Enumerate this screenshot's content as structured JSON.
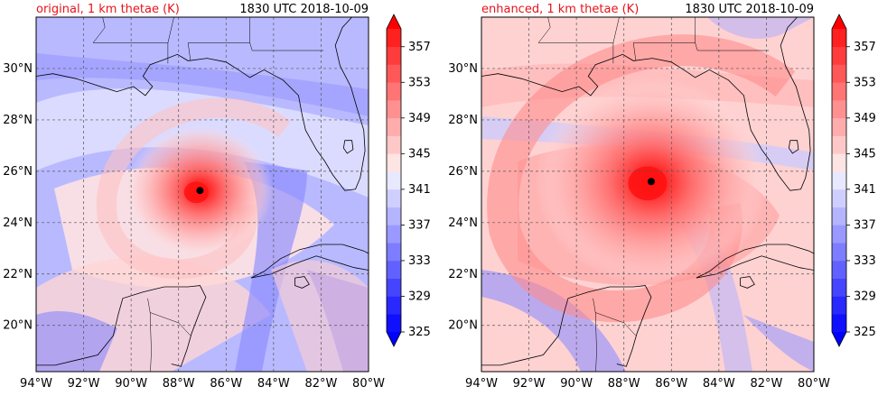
{
  "panels": [
    {
      "title_left": "original, 1 km thetae (K)",
      "title_right": "1830 UTC 2018-10-09",
      "storm_center": {
        "lon": -87.1,
        "lat": 25.25
      },
      "core_scale": 0.85
    },
    {
      "title_left": "enhanced, 1 km thetae (K)",
      "title_right": "1830 UTC 2018-10-09",
      "storm_center": {
        "lon": -86.85,
        "lat": 25.6
      },
      "core_scale": 1.35
    }
  ],
  "map_extent": {
    "lon": [
      -94,
      -80
    ],
    "lat": [
      18.2,
      32
    ]
  },
  "lon_ticks": [
    "94°W",
    "92°W",
    "90°W",
    "88°W",
    "86°W",
    "84°W",
    "82°W",
    "80°W"
  ],
  "lat_ticks": [
    "20°N",
    "22°N",
    "24°N",
    "26°N",
    "28°N",
    "30°N"
  ],
  "lon_values": [
    -94,
    -92,
    -90,
    -88,
    -86,
    -84,
    -82,
    -80
  ],
  "lat_values": [
    20,
    22,
    24,
    26,
    28,
    30
  ],
  "colorbar": {
    "min": 325,
    "max": 359,
    "step": 2,
    "tick_labels": [
      "325",
      "329",
      "333",
      "337",
      "341",
      "345",
      "349",
      "353",
      "357"
    ],
    "tick_values": [
      325,
      329,
      333,
      337,
      341,
      345,
      349,
      353,
      357
    ],
    "colors": [
      "#1010ff",
      "#2828ff",
      "#4545ff",
      "#6161ff",
      "#7d7dff",
      "#9999ff",
      "#b4b4ff",
      "#cfcfff",
      "#e8e8ff",
      "#ffe4e4",
      "#ffc8c8",
      "#ffacac",
      "#ff9090",
      "#ff7474",
      "#ff5858",
      "#ff3c3c",
      "#ff2020"
    ],
    "extend_low": "#0000ff",
    "extend_high": "#ff0000"
  }
}
